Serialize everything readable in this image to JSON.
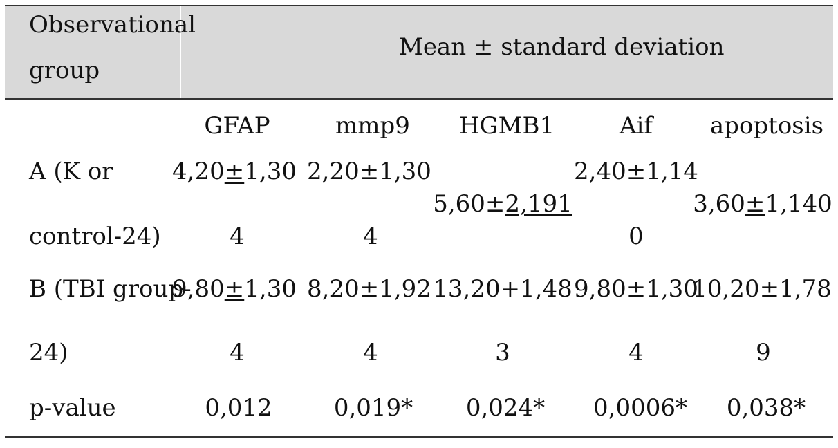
{
  "table": {
    "header": {
      "group_label_line1": "Observational",
      "group_label_line2": "group",
      "span_label": "Mean ± standard deviation"
    },
    "columns": {
      "gfap": "GFAP",
      "mmp9": "mmp9",
      "hgmb1": "HGMB1",
      "aif": "Aif",
      "apoptosis": "apoptosis"
    },
    "row_a": {
      "label_line1": "A (K or",
      "label_line2": "control-24)",
      "gfap": {
        "pre": "4,20",
        "pm": "±",
        "post": "1,30",
        "cont": "4"
      },
      "mmp9": {
        "line1": "2,20±1,30",
        "cont": "4"
      },
      "hgmb1": {
        "pre": "5,60±",
        "post": "2,191"
      },
      "aif": {
        "line1": "2,40±1,14",
        "cont": "0"
      },
      "apoptosis": {
        "pre": "3,60",
        "pm": "±",
        "post": "1,140"
      }
    },
    "row_b": {
      "label_line1": "B (TBI group-",
      "label_line2": "24)",
      "gfap": {
        "pre": "9,80",
        "pm": "±",
        "post": "1,30",
        "cont": "4"
      },
      "mmp9": {
        "line1": "8,20±1,92",
        "cont": "4"
      },
      "hgmb1": {
        "line1": "13,20+1,48",
        "cont": "3"
      },
      "aif": {
        "line1": "9,80±1,30",
        "cont": "4"
      },
      "apoptosis": {
        "line1": "10,20±1,78",
        "cont": "9"
      }
    },
    "row_p": {
      "label": "p-value",
      "gfap": "0,012",
      "mmp9": "0,019*",
      "hgmb1": "0,024*",
      "aif": "0,0006*",
      "apoptosis": "0,038*"
    }
  }
}
